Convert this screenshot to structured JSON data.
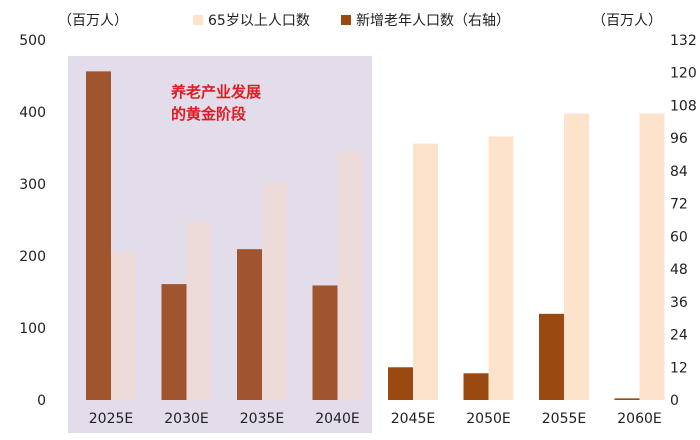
{
  "chart_data": {
    "type": "bar",
    "title": "",
    "categories": [
      "2025E",
      "2030E",
      "2035E",
      "2040E",
      "2045E",
      "2050E",
      "2055E",
      "2060E"
    ],
    "left_axis": {
      "unit": "（百万人）",
      "ylim": [
        0,
        500
      ],
      "ticks": [
        "0",
        "100",
        "200",
        "300",
        "400",
        "500"
      ]
    },
    "right_axis": {
      "unit": "（百万人）",
      "ylim": [
        0,
        132
      ],
      "ticks": [
        "0",
        "12",
        "24",
        "36",
        "48",
        "60",
        "72",
        "84",
        "96",
        "108",
        "120",
        "132"
      ]
    },
    "series": [
      {
        "name": "65岁以上人口数",
        "axis": "left",
        "values": [
          205,
          248,
          302,
          345,
          356,
          366,
          398,
          398
        ]
      },
      {
        "name": "新增老年人口数（右轴）",
        "axis": "right",
        "values": [
          120.5,
          42.5,
          55.3,
          42,
          12,
          9.8,
          31.6,
          0.6
        ]
      }
    ],
    "highlight": {
      "label_line1": "养老产业发展",
      "label_line2": "的黄金阶段",
      "categories": [
        "2025E",
        "2030E",
        "2035E",
        "2040E"
      ]
    },
    "colors": {
      "left_series": "#fde3cc",
      "left_series_in_highlight": "#ecdbd9",
      "right_series_in_highlight": "#a0552e",
      "right_series": "#9a4a10",
      "highlight_bg": "#e3dcea",
      "annotation": "#e21b23"
    },
    "legend_position": "top-center",
    "grid": false
  }
}
